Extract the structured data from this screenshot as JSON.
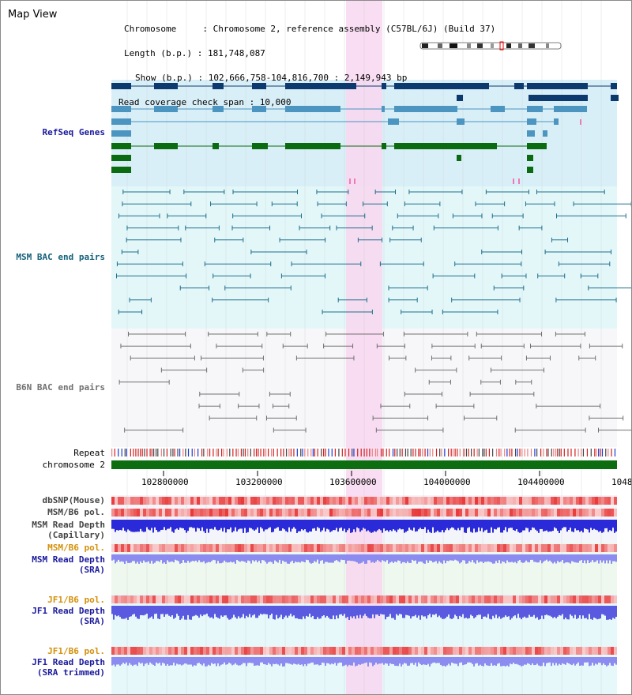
{
  "title": "Map View",
  "info": {
    "chromosome": "Chromosome     : Chromosome 2, reference assembly (C57BL/6J) (Build 37)",
    "length": "Length (b.p.) : 181,748,087",
    "show": "Show (b.p.) : 102,666,758-104,816,700 : 2,149,943 bp",
    "coverage": "Read coverage check span : 10,000"
  },
  "tracks": {
    "refseq": "RefSeq Genes",
    "msm_bac": "MSM BAC end pairs",
    "b6n_bac": "B6N BAC end pairs",
    "repeat": "Repeat",
    "chrom": "chromosome 2",
    "dbsnp": "dbSNP(Mouse)",
    "msm_b6_pol_1": "MSM/B6 pol.",
    "msm_read_depth_cap_1": "MSM Read Depth",
    "msm_read_depth_cap_2": "(Capillary)",
    "msm_b6_pol_2": "MSM/B6 pol.",
    "msm_read_depth_sra_1": "MSM Read Depth",
    "msm_read_depth_sra_2": "(SRA)",
    "jf1_b6_pol_1": "JF1/B6 pol.",
    "jf1_read_depth_sra_1": "JF1 Read Depth",
    "jf1_read_depth_sra_2": "(SRA)",
    "jf1_b6_pol_2": "JF1/B6 pol.",
    "jf1_read_depth_trim_1": "JF1 Read Depth",
    "jf1_read_depth_trim_2": "(SRA trimmed)"
  },
  "axis": {
    "ticks": [
      "102800000",
      "103200000",
      "103600000",
      "104000000",
      "104400000",
      "1048"
    ]
  },
  "colors": {
    "refseq_bg": "#d9eff8",
    "msm_bg": "#e3f7f9",
    "b6n_bg": "#f7f7f9",
    "highlight": "#f8d7f0",
    "gene_dark": "#0c3a6e",
    "gene_mid": "#4b95c0",
    "gene_green": "#0b6b10",
    "msm_line": "#1e6f8c",
    "b6n_line": "#707070",
    "chrom_bar": "#0c6e10",
    "pol": "#e84040",
    "depth": "#2a2ad8",
    "depth_light": "#8c8cf0",
    "label_blue": "#1a1a9c",
    "label_orange": "#d4900a",
    "label_teal": "#14607a"
  }
}
